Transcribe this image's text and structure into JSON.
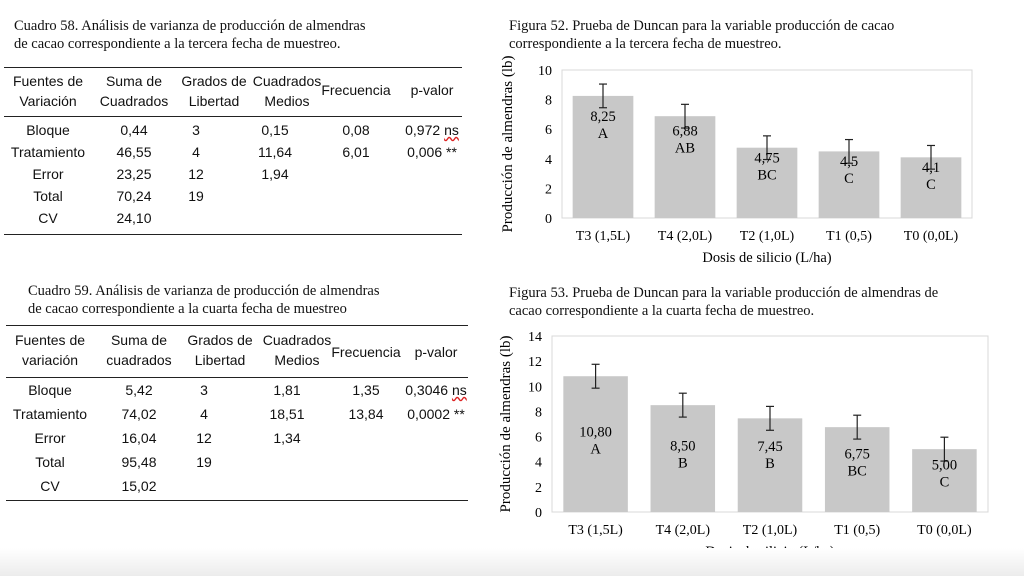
{
  "table58": {
    "caption_line1": "Cuadro 58. Análisis de varianza de producción de almendras",
    "caption_line2": "de cacao correspondiente a la tercera fecha de muestreo.",
    "headers": [
      {
        "l1": "Fuentes de",
        "l2": "Variación"
      },
      {
        "l1": "Suma de",
        "l2": "Cuadrados"
      },
      {
        "l1": "Grados de",
        "l2": "Libertad"
      },
      {
        "l1": "Cuadrados",
        "l2": "Medios"
      },
      {
        "l1": "Frecuencia",
        "l2": ""
      },
      {
        "l1": "p-valor",
        "l2": ""
      }
    ],
    "rows": [
      [
        "Bloque",
        "0,44",
        "3",
        "0,15",
        "0,08",
        "0,972 ns"
      ],
      [
        "Tratamiento",
        "46,55",
        "4",
        "11,64",
        "6,01",
        "0,006 **"
      ],
      [
        "Error",
        "23,25",
        "12",
        "1,94",
        "",
        ""
      ],
      [
        "Total",
        "70,24",
        "19",
        "",
        "",
        ""
      ],
      [
        "CV",
        "24,10",
        "",
        "",
        "",
        ""
      ]
    ]
  },
  "table59": {
    "caption_line1": "Cuadro 59. Análisis de varianza de producción de almendras",
    "caption_line2": "de cacao correspondiente a la cuarta fecha de muestreo",
    "headers": [
      {
        "l1": "Fuentes de",
        "l2": "variación"
      },
      {
        "l1": "Suma de",
        "l2": "cuadrados"
      },
      {
        "l1": "Grados de",
        "l2": "Libertad"
      },
      {
        "l1": "Cuadrados",
        "l2": "Medios"
      },
      {
        "l1": "Frecuencia",
        "l2": ""
      },
      {
        "l1": "p-valor",
        "l2": ""
      }
    ],
    "rows": [
      [
        "Bloque",
        "5,42",
        "3",
        "1,81",
        "1,35",
        "0,3046 ns"
      ],
      [
        "Tratamiento",
        "74,02",
        "4",
        "18,51",
        "13,84",
        "0,0002 **"
      ],
      [
        "Error",
        "16,04",
        "12",
        "1,34",
        "",
        ""
      ],
      [
        "Total",
        "95,48",
        "19",
        "",
        "",
        ""
      ],
      [
        "CV",
        "15,02",
        "",
        "",
        "",
        ""
      ]
    ]
  },
  "chart_data": [
    {
      "type": "bar",
      "title": "Figura 52. Prueba de Duncan para la variable producción de cacao correspondiente a la tercera fecha de muestreo.",
      "title_line1": "Figura 52. Prueba de Duncan para la variable producción de cacao",
      "title_line2": "correspondiente a la tercera fecha de muestreo.",
      "xlabel": "Dosis de silicio (L/ha)",
      "ylabel": "Producción de almendras (lb)",
      "categories": [
        "T3 (1,5L)",
        "T4 (2,0L)",
        "T2 (1,0L)",
        "T1 (0,5)",
        "T0 (0,0L)"
      ],
      "values": [
        8.25,
        6.88,
        4.75,
        4.5,
        4.1
      ],
      "value_labels": [
        "8,25",
        "6,88",
        "4,75",
        "4,5",
        "4,1"
      ],
      "groups": [
        "A",
        "AB",
        "BC",
        "C",
        "C"
      ],
      "error": [
        0.8,
        0.8,
        0.8,
        0.8,
        0.8
      ],
      "ylim": [
        0,
        10
      ],
      "yticks": [
        "0",
        "2",
        "4",
        "6",
        "8",
        "10"
      ],
      "grid": false,
      "bar_color": "#c8c8c8"
    },
    {
      "type": "bar",
      "title": "Figura 53. Prueba de Duncan para la variable producción de almendras de cacao correspondiente a la cuarta fecha de muestreo.",
      "title_line1": "Figura 53. Prueba de Duncan para la variable producción de almendras de",
      "title_line2": "cacao correspondiente a la cuarta fecha de muestreo.",
      "xlabel": "Dosis de silicio (L/ha)",
      "ylabel": "Producción de almendras (lb)",
      "categories": [
        "T3 (1,5L)",
        "T4 (2,0L)",
        "T2 (1,0L)",
        "T1 (0,5)",
        "T0 (0,0L)"
      ],
      "values": [
        10.8,
        8.5,
        7.45,
        6.75,
        5.0
      ],
      "value_labels": [
        "10,80",
        "8,50",
        "7,45",
        "6,75",
        "5,00"
      ],
      "groups": [
        "A",
        "B",
        "B",
        "BC",
        "C"
      ],
      "error": [
        0.95,
        0.95,
        0.95,
        0.95,
        0.95
      ],
      "ylim": [
        0,
        14
      ],
      "yticks": [
        "0",
        "2",
        "4",
        "6",
        "8",
        "10",
        "12",
        "14"
      ],
      "grid": false,
      "bar_color": "#c8c8c8"
    }
  ]
}
